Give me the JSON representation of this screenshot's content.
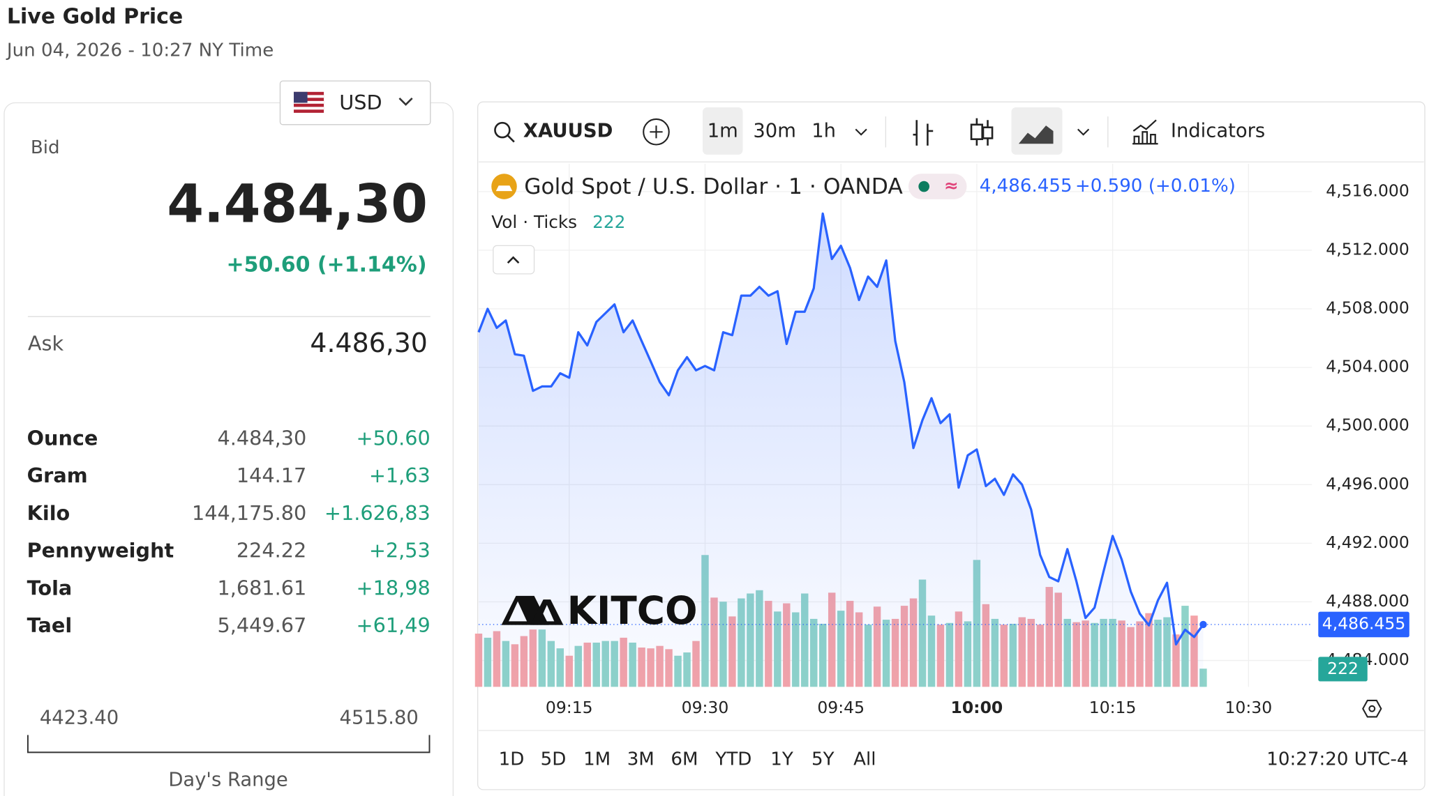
{
  "header": {
    "title": "Live Gold Price",
    "subtitle": "Jun 04, 2026 - 10:27 NY Time"
  },
  "currency": "USD",
  "bid": {
    "label": "Bid",
    "value": "4.484,30",
    "change": "+50.60 (+1.14%)"
  },
  "ask": {
    "label": "Ask",
    "value": "4.486,30"
  },
  "table": {
    "rows": [
      [
        "Ounce",
        "4.484,30",
        "+50.60"
      ],
      [
        "Gram",
        "144.17",
        "+1,63"
      ],
      [
        "Kilo",
        "144,175.80",
        "+1.626,83"
      ],
      [
        "Pennyweight",
        "224.22",
        "+2,53"
      ],
      [
        "Tola",
        "1,681.61",
        "+18,98"
      ],
      [
        "Tael",
        "5,449.67",
        "+61,49"
      ]
    ]
  },
  "range": {
    "low": "4423.40",
    "high": "4515.80",
    "label": "Day's Range"
  },
  "toolbar": {
    "symbol": "XAUUSD",
    "intervals": [
      "1m",
      "30m",
      "1h"
    ],
    "indicators": "Indicators"
  },
  "chart": {
    "type": "line",
    "legend_title": "Gold Spot / U.S. Dollar · 1 · OANDA",
    "last_price_label": "4,486.455",
    "last_change": "+0.590 (+0.01%)",
    "volume_label": "Vol · Ticks",
    "logo": "KITCO",
    "color": "#2962ff",
    "xlim": [
      "09:05",
      "10:37"
    ],
    "xticks": [
      "09:15",
      "09:30",
      "09:45",
      "10:00",
      "10:15",
      "10:30"
    ],
    "ylim": [
      4482.2,
      4517.9
    ],
    "yticks": [
      {
        "value": 4516,
        "label": "4,516.000"
      },
      {
        "value": 4512,
        "label": "4,512.000"
      },
      {
        "value": 4508,
        "label": "4,508.000"
      },
      {
        "value": 4504,
        "label": "4,504.000"
      },
      {
        "value": 4500,
        "label": "4,500.000"
      },
      {
        "value": 4496,
        "label": "4,496.000"
      },
      {
        "value": 4492,
        "label": "4,492.000"
      },
      {
        "value": 4488,
        "label": "4,488.000"
      },
      {
        "value": 4484,
        "label": "4,484.000"
      }
    ],
    "grid": true,
    "x": [
      "09:05",
      "09:06",
      "09:07",
      "09:08",
      "09:09",
      "09:10",
      "09:11",
      "09:12",
      "09:13",
      "09:14",
      "09:15",
      "09:16",
      "09:17",
      "09:18",
      "09:19",
      "09:20",
      "09:21",
      "09:22",
      "09:23",
      "09:24",
      "09:25",
      "09:26",
      "09:27",
      "09:28",
      "09:29",
      "09:30",
      "09:31",
      "09:32",
      "09:33",
      "09:34",
      "09:35",
      "09:36",
      "09:37",
      "09:38",
      "09:39",
      "09:40",
      "09:41",
      "09:42",
      "09:43",
      "09:44",
      "09:45",
      "09:46",
      "09:47",
      "09:48",
      "09:49",
      "09:50",
      "09:51",
      "09:52",
      "09:53",
      "09:54",
      "09:55",
      "09:56",
      "09:57",
      "09:58",
      "09:59",
      "10:00",
      "10:01",
      "10:02",
      "10:03",
      "10:04",
      "10:05",
      "10:06",
      "10:07",
      "10:08",
      "10:09",
      "10:10",
      "10:11",
      "10:12",
      "10:13",
      "10:14",
      "10:15",
      "10:16",
      "10:17",
      "10:18",
      "10:19",
      "10:20",
      "10:21",
      "10:22",
      "10:23",
      "10:24",
      "10:25"
    ],
    "values": [
      4506.4,
      4508.0,
      4506.7,
      4507.2,
      4504.9,
      4504.8,
      4502.4,
      4502.7,
      4502.7,
      4503.6,
      4503.3,
      4506.4,
      4505.5,
      4507.1,
      4507.7,
      4508.3,
      4506.4,
      4507.2,
      4505.8,
      4504.4,
      4503.0,
      4502.1,
      4503.8,
      4504.7,
      4503.8,
      4504.1,
      4503.8,
      4506.4,
      4506.2,
      4508.9,
      4508.9,
      4509.5,
      4508.9,
      4509.2,
      4505.6,
      4507.8,
      4507.8,
      4509.4,
      4514.5,
      4511.4,
      4512.3,
      4510.8,
      4508.6,
      4510.2,
      4509.5,
      4511.3,
      4505.8,
      4503.0,
      4498.5,
      4500.4,
      4501.9,
      4500.2,
      4500.8,
      4495.8,
      4498.0,
      4498.4,
      4495.9,
      4496.4,
      4495.3,
      4496.7,
      4496.0,
      4494.3,
      4491.2,
      4489.7,
      4489.4,
      4491.6,
      4489.4,
      4486.9,
      4487.6,
      4490.1,
      4492.5,
      4490.9,
      4488.7,
      4487.2,
      4486.4,
      4488.1,
      4489.3,
      4485.1,
      4486.1,
      4485.6,
      4486.455
    ],
    "volume": {
      "ylim": [
        0,
        2000
      ],
      "color_up": "#8fd3c9",
      "color_down": "#f4a3a8",
      "values": [
        650,
        600,
        680,
        560,
        520,
        620,
        700,
        700,
        560,
        470,
        380,
        500,
        540,
        540,
        560,
        560,
        600,
        540,
        480,
        470,
        500,
        460,
        380,
        420,
        560,
        1610,
        1090,
        1040,
        860,
        1080,
        1140,
        1180,
        1050,
        920,
        1020,
        910,
        1140,
        830,
        770,
        1150,
        930,
        1050,
        910,
        760,
        980,
        820,
        830,
        990,
        1080,
        1310,
        870,
        760,
        780,
        920,
        800,
        1550,
        1010,
        830,
        760,
        770,
        850,
        830,
        760,
        1220,
        1150,
        830,
        790,
        810,
        780,
        830,
        830,
        810,
        730,
        800,
        900,
        820,
        850,
        640,
        990,
        870,
        222
      ]
    }
  },
  "ranges": [
    "1D",
    "5D",
    "1M",
    "3M",
    "6M",
    "YTD",
    "1Y",
    "5Y",
    "All"
  ],
  "clock": "10:27:20 UTC-4"
}
